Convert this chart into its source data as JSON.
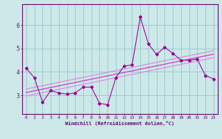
{
  "x_data": [
    0,
    1,
    2,
    3,
    4,
    5,
    6,
    7,
    8,
    9,
    10,
    11,
    12,
    13,
    14,
    15,
    16,
    17,
    18,
    19,
    20,
    21,
    22,
    23
  ],
  "y_main": [
    4.15,
    3.75,
    2.7,
    3.2,
    3.1,
    3.05,
    3.1,
    3.35,
    3.35,
    2.65,
    2.6,
    3.75,
    4.25,
    4.3,
    6.35,
    5.2,
    4.75,
    5.05,
    4.8,
    4.5,
    4.5,
    4.55,
    3.85,
    3.7
  ],
  "line_color": "#990099",
  "marker": "D",
  "marker_size": 2,
  "bg_color": "#cce8e8",
  "grid_color": "#99cccc",
  "axis_color": "#660066",
  "text_color": "#660066",
  "xlabel": "Windchill (Refroidissement éolien,°C)",
  "xlim": [
    -0.5,
    23.5
  ],
  "ylim": [
    2.2,
    6.9
  ],
  "yticks": [
    3,
    4,
    5,
    6
  ],
  "xticks": [
    0,
    1,
    2,
    3,
    4,
    5,
    6,
    7,
    8,
    9,
    10,
    11,
    12,
    13,
    14,
    15,
    16,
    17,
    18,
    19,
    20,
    21,
    22,
    23
  ],
  "reg_line1": [
    2.9,
    4.45
  ],
  "reg_line2": [
    3.1,
    4.6
  ],
  "reg_line3": [
    3.0,
    4.52
  ],
  "regression_color": "#cc44cc",
  "regression_color2": "#dd88dd"
}
